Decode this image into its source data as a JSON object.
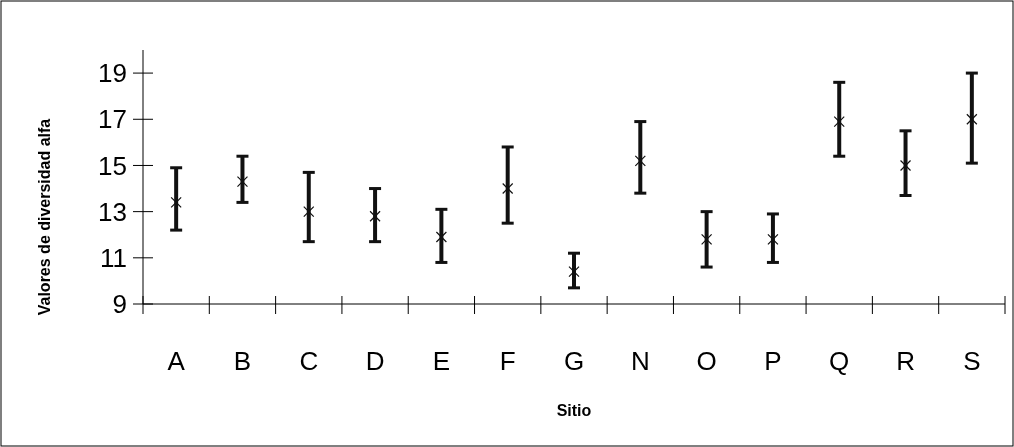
{
  "chart_data": {
    "type": "scatter",
    "xlabel": "Sitio",
    "ylabel": "Valores de diversidad alfa",
    "categories": [
      "A",
      "B",
      "C",
      "D",
      "E",
      "F",
      "G",
      "N",
      "O",
      "P",
      "Q",
      "R",
      "S"
    ],
    "series": [
      {
        "color": "#111111",
        "values": [
          13.4,
          14.3,
          13.0,
          12.8,
          11.9,
          14.0,
          10.4,
          15.2,
          11.8,
          11.8,
          16.9,
          15.0,
          17.0
        ],
        "errors": [
          [
            12.2,
            14.9
          ],
          [
            13.4,
            15.4
          ],
          [
            11.7,
            14.7
          ],
          [
            11.7,
            14.0
          ],
          [
            10.8,
            13.1
          ],
          [
            12.5,
            15.8
          ],
          [
            9.7,
            11.2
          ],
          [
            13.8,
            16.9
          ],
          [
            10.6,
            13.0
          ],
          [
            10.8,
            12.9
          ],
          [
            15.4,
            18.6
          ],
          [
            13.7,
            16.5
          ],
          [
            15.1,
            19.0
          ]
        ]
      }
    ],
    "ylim": [
      9,
      20
    ],
    "yticks": [
      9,
      11,
      13,
      15,
      17,
      19
    ],
    "grid": false,
    "marker": "cross"
  }
}
